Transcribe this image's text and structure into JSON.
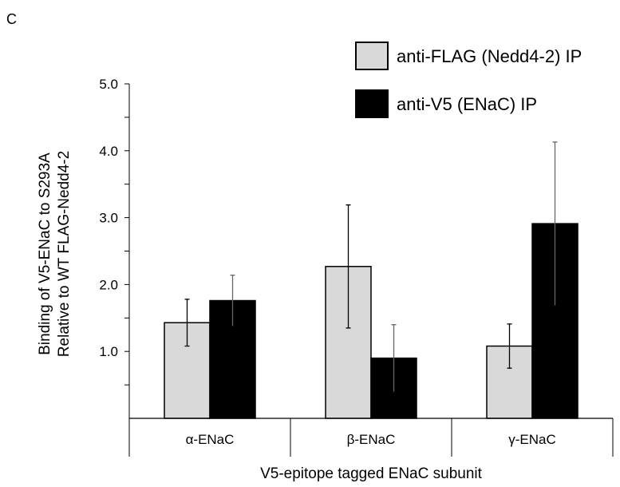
{
  "panel_label": "C",
  "chart_data": {
    "type": "bar",
    "categories": [
      "α-ENaC",
      "β-ENaC",
      "γ-ENaC"
    ],
    "series": [
      {
        "name": "anti-FLAG (Nedd4-2) IP",
        "color": "#d9d9d9",
        "values": [
          1.43,
          2.27,
          1.08
        ],
        "error": [
          0.35,
          0.92,
          0.33
        ]
      },
      {
        "name": "anti-V5 (ENaC) IP",
        "color": "#000000",
        "values": [
          1.76,
          0.9,
          2.91
        ],
        "error": [
          0.38,
          0.5,
          1.22
        ]
      }
    ],
    "ylabel_line1": "Binding of V5-ENaC to S293A",
    "ylabel_line2": "Relative to WT FLAG-Nedd4-2",
    "xlabel": "V5-epitope tagged ENaC subunit",
    "ylim": [
      0,
      5
    ],
    "yticks": [
      "1.0",
      "2.0",
      "3.0",
      "4.0",
      "5.0"
    ],
    "legend_position": "top-right"
  }
}
